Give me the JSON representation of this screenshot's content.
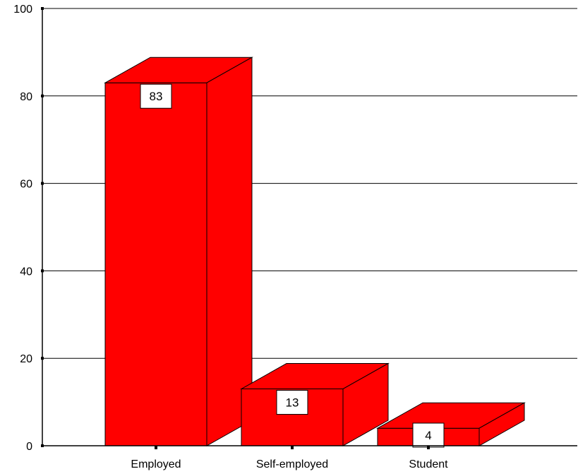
{
  "chart_data": {
    "type": "bar",
    "title": "",
    "xlabel": "",
    "ylabel": "",
    "categories": [
      "Employed",
      "Self-employed",
      "Student"
    ],
    "values": [
      83,
      13,
      4
    ],
    "ylim": [
      0,
      100
    ],
    "yticks": [
      0,
      20,
      40,
      60,
      80,
      100
    ],
    "grid": true,
    "three_d": true,
    "bar_color": "#ff0000",
    "data_labels": true
  }
}
